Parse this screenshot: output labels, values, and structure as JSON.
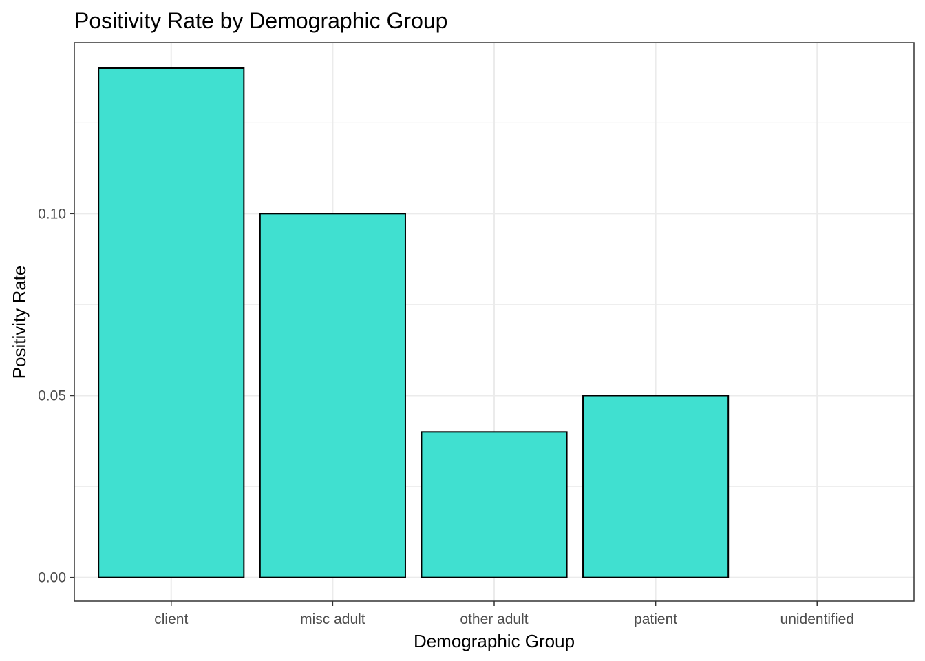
{
  "chart_data": {
    "type": "bar",
    "title": "Positivity Rate by Demographic Group",
    "xlabel": "Demographic Group",
    "ylabel": "Positivity Rate",
    "categories": [
      "client",
      "misc adult",
      "other adult",
      "patient",
      "unidentified"
    ],
    "values": [
      0.14,
      0.1,
      0.04,
      0.05,
      0.0
    ],
    "ylim": [
      -0.0065,
      0.147
    ],
    "yticks": [
      0.0,
      0.05,
      0.1
    ],
    "ytick_labels": [
      "0.00",
      "0.05",
      "0.10"
    ],
    "y_minor_ticks": [
      0.025,
      0.075,
      0.125
    ],
    "grid": true,
    "legend": "none",
    "colors": {
      "bar_fill": "#40E0D0",
      "bar_stroke": "#000000",
      "grid": "#ebebeb",
      "panel_border": "#333333"
    }
  }
}
